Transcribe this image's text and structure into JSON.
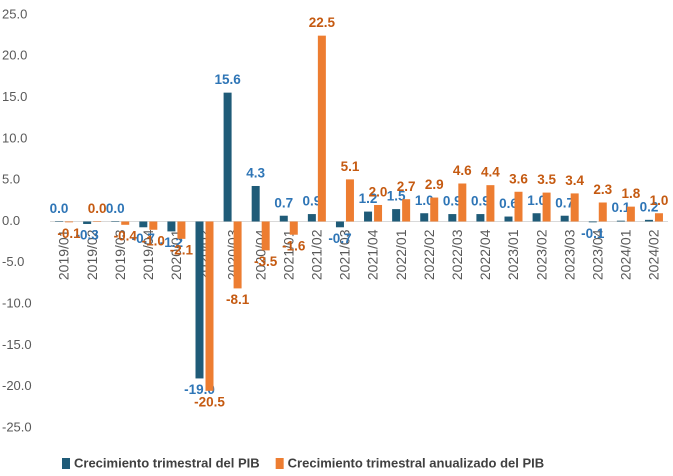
{
  "chart_data": {
    "type": "bar",
    "categories": [
      "2019/01",
      "2019/02",
      "2019/03",
      "2019/04",
      "2020/01",
      "2020/02",
      "2020/03",
      "2020/04",
      "2021/01",
      "2021/02",
      "2021/03",
      "2021/04",
      "2022/01",
      "2022/02",
      "2022/03",
      "2022/04",
      "2023/01",
      "2023/02",
      "2023/03",
      "2023/04",
      "2024/01",
      "2024/02"
    ],
    "series": [
      {
        "name": "Crecimiento trimestral del PIB",
        "color": "#1f5b78",
        "values": [
          0.0,
          -0.3,
          0.0,
          -0.7,
          -1.2,
          -19.0,
          15.6,
          4.3,
          0.7,
          0.9,
          -0.7,
          1.2,
          1.5,
          1.0,
          0.9,
          0.9,
          0.6,
          1.0,
          0.7,
          -0.1,
          0.1,
          0.2
        ],
        "value_labels": [
          "0.0",
          "-0.3",
          "0.0",
          "-0.7",
          "-1.2",
          "-19.0",
          "15.6",
          "4.3",
          "0.7",
          "0.9",
          "-0.7",
          "1.2",
          "1.5",
          "1.0",
          "0.9",
          "0.9",
          "0.6",
          "1.0",
          "0.7",
          "-0.1",
          "0.1",
          "0.2"
        ]
      },
      {
        "name": "Crecimiento trimestral anualizado del PIB",
        "color": "#ed7d31",
        "values": [
          -0.1,
          0.0,
          -0.4,
          -1.0,
          -2.1,
          -20.5,
          -8.1,
          -3.5,
          -1.6,
          22.5,
          5.1,
          2.0,
          2.7,
          2.9,
          4.6,
          4.4,
          3.6,
          3.5,
          3.4,
          2.3,
          1.8,
          1.0
        ],
        "value_labels": [
          "-0.1",
          "0.0",
          "-0.4",
          "-1.0",
          "-2.1",
          "-20.5",
          "-8.1",
          "-3.5",
          "-1.6",
          "22.5",
          "5.1",
          "2.0",
          "2.7",
          "2.9",
          "4.6",
          "4.4",
          "3.6",
          "3.5",
          "3.4",
          "2.3",
          "1.8",
          "1.0"
        ]
      }
    ],
    "ylim": [
      -25,
      25
    ],
    "yticks": [
      {
        "value": -25,
        "label": "-25.0"
      },
      {
        "value": -20,
        "label": "-20.0"
      },
      {
        "value": -15,
        "label": "-15.0"
      },
      {
        "value": -10,
        "label": "-10.0"
      },
      {
        "value": -5,
        "label": "-5.0"
      },
      {
        "value": 0,
        "label": "0.0"
      },
      {
        "value": 5,
        "label": "5.0"
      },
      {
        "value": 10,
        "label": "10.0"
      },
      {
        "value": 15,
        "label": "15.0"
      },
      {
        "value": 20,
        "label": "20.0"
      },
      {
        "value": 25,
        "label": "25.0"
      }
    ],
    "grid": false,
    "legend": "bottom"
  }
}
